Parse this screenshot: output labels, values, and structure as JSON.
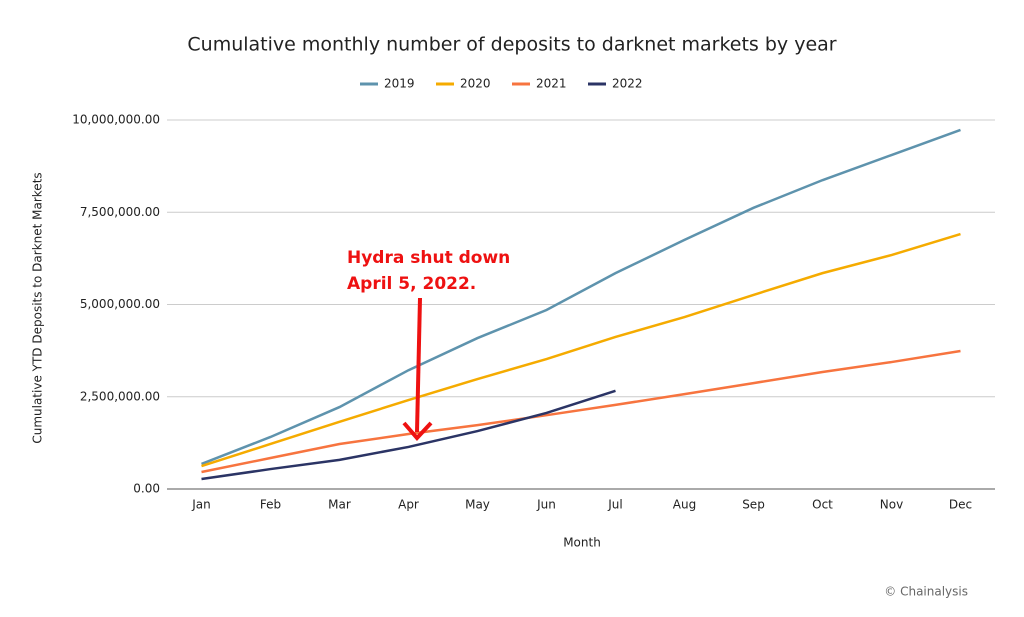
{
  "chart_data": {
    "type": "line",
    "title": "Cumulative monthly number of deposits to darknet markets by year",
    "xlabel": "Month",
    "ylabel": "Cumulative YTD Deposits to Darknet Markets",
    "categories": [
      "Jan",
      "Feb",
      "Mar",
      "Apr",
      "May",
      "Jun",
      "Jul",
      "Aug",
      "Sep",
      "Oct",
      "Nov",
      "Dec"
    ],
    "series": [
      {
        "name": "2019",
        "color": "#5e93ad",
        "values": [
          680000,
          1410000,
          2220000,
          3220000,
          4090000,
          4850000,
          5850000,
          6750000,
          7620000,
          8370000,
          9050000,
          9730000
        ]
      },
      {
        "name": "2020",
        "color": "#f5ab00",
        "values": [
          620000,
          1220000,
          1820000,
          2410000,
          2980000,
          3520000,
          4120000,
          4660000,
          5260000,
          5850000,
          6340000,
          6910000
        ]
      },
      {
        "name": "2021",
        "color": "#f7743f",
        "values": [
          460000,
          840000,
          1220000,
          1490000,
          1730000,
          2000000,
          2280000,
          2570000,
          2870000,
          3170000,
          3440000,
          3740000
        ]
      },
      {
        "name": "2022",
        "color": "#2b3465",
        "values": [
          270000,
          540000,
          790000,
          1140000,
          1570000,
          2060000,
          2660000,
          null,
          null,
          null,
          null,
          null
        ]
      }
    ],
    "ylim": [
      0,
      10000000
    ],
    "yticks": [
      {
        "value": 0,
        "label": "0.00"
      },
      {
        "value": 2500000,
        "label": "2,500,000.00"
      },
      {
        "value": 5000000,
        "label": "5,000,000.00"
      },
      {
        "value": 7500000,
        "label": "7,500,000.00"
      },
      {
        "value": 10000000,
        "label": "10,000,000.00"
      }
    ],
    "grid": true,
    "legend": "top",
    "annotation": [
      "Hydra shut down",
      "April 5, 2022."
    ],
    "credit": "© Chainalysis"
  }
}
